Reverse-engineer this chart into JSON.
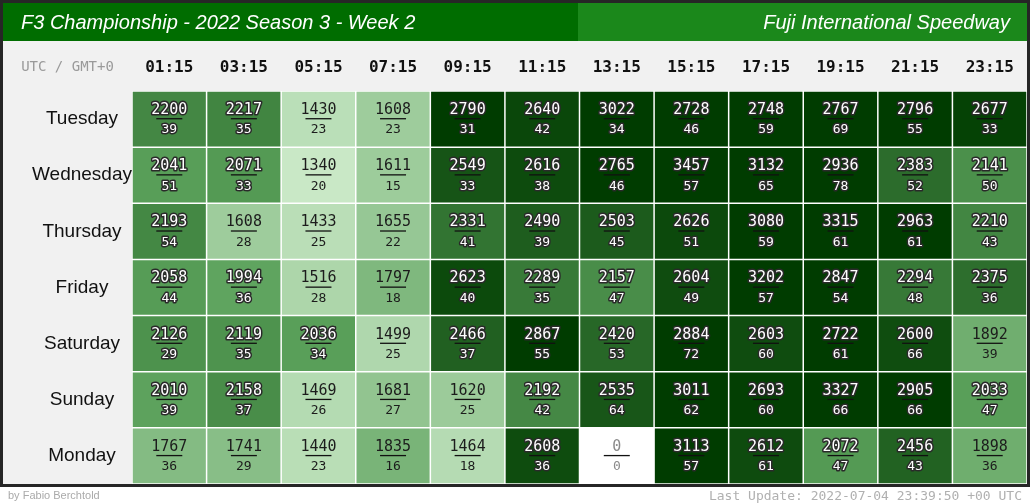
{
  "chart_data": {
    "type": "heatmap",
    "title": "F3 Championship - 2022 Season 3 - Week 2",
    "subtitle": "Fuji International Speedway",
    "xlabel": "UTC / GMT+0",
    "categories": [
      "01:15",
      "03:15",
      "05:15",
      "07:15",
      "09:15",
      "11:15",
      "13:15",
      "15:15",
      "17:15",
      "19:15",
      "21:15",
      "23:15"
    ],
    "y_categories": [
      "Tuesday",
      "Wednesday",
      "Thursday",
      "Friday",
      "Saturday",
      "Sunday",
      "Monday"
    ],
    "cells": [
      [
        2200,
        2217,
        1430,
        1608,
        2790,
        2640,
        3022,
        2728,
        2748,
        2767,
        2796,
        2677
      ],
      [
        2041,
        2071,
        1340,
        1611,
        2549,
        2616,
        2765,
        3457,
        3132,
        2936,
        2383,
        2141
      ],
      [
        2193,
        1608,
        1433,
        1655,
        2331,
        2490,
        2503,
        2626,
        3080,
        3315,
        2963,
        2210
      ],
      [
        2058,
        1994,
        1516,
        1797,
        2623,
        2289,
        2157,
        2604,
        3202,
        2847,
        2294,
        2375
      ],
      [
        2126,
        2119,
        2036,
        1499,
        2466,
        2867,
        2420,
        2884,
        2603,
        2722,
        2600,
        1892
      ],
      [
        2010,
        2158,
        1469,
        1681,
        1620,
        2192,
        2535,
        3011,
        2693,
        3327,
        2905,
        2033
      ],
      [
        1767,
        1741,
        1440,
        1835,
        1464,
        2608,
        0,
        3113,
        2612,
        2072,
        2456,
        1898
      ]
    ],
    "data_labels": true,
    "annotations": [
      "by Fabio Berchtold",
      "Last Update: 2022-07-04 23:39:50 +00 UTC",
      "39",
      "35",
      "23",
      "23",
      "31",
      "42",
      "34",
      "46",
      "59",
      "69",
      "55",
      "33",
      "51",
      "33",
      "20",
      "15",
      "33",
      "38",
      "46",
      "57",
      "65",
      "78",
      "52",
      "50",
      "54",
      "28",
      "25",
      "22",
      "41",
      "39",
      "45",
      "51",
      "59",
      "61",
      "61",
      "43",
      "44",
      "36",
      "28",
      "18",
      "40",
      "35",
      "47",
      "49",
      "57",
      "54",
      "48",
      "36",
      "29",
      "35",
      "34",
      "25",
      "37",
      "55",
      "53",
      "72",
      "60",
      "61",
      "66",
      "39",
      "39",
      "37",
      "26",
      "27",
      "25",
      "42",
      "64",
      "62",
      "60",
      "66",
      "66",
      "47",
      "36",
      "29",
      "23",
      "16",
      "18",
      "36",
      "0",
      "57",
      "61",
      "47",
      "43",
      "36"
    ]
  }
}
